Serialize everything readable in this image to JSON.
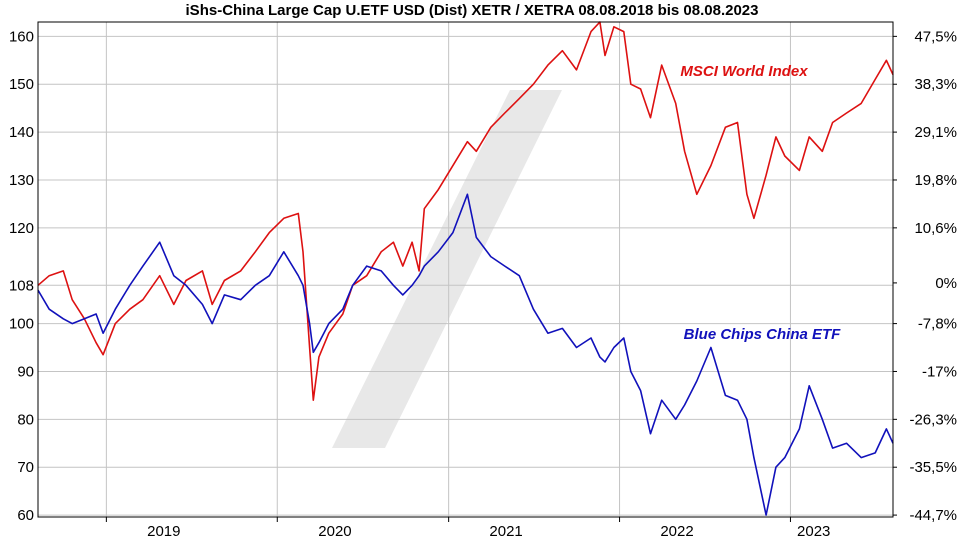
{
  "chart_data": {
    "type": "line",
    "title": "iShs-China Large Cap U.ETF USD (Dist) XETR / XETRA 08.08.2018 bis 08.08.2023",
    "xlabel": "",
    "ylabel": "",
    "x_range": [
      "2018-08-08",
      "2023-08-08"
    ],
    "ylim": [
      59.6,
      163
    ],
    "x_ticks": [
      {
        "date": "2019-01-01",
        "label": "2019"
      },
      {
        "date": "2020-01-01",
        "label": "2020"
      },
      {
        "date": "2021-01-01",
        "label": "2021"
      },
      {
        "date": "2022-01-01",
        "label": "2022"
      },
      {
        "date": "2023-01-01",
        "label": "2023"
      }
    ],
    "y_ticks_left": [
      60,
      70,
      80,
      90,
      100,
      108,
      120,
      130,
      140,
      150,
      160
    ],
    "y_ticks_right": [
      {
        "value": 160,
        "label": "47,5%"
      },
      {
        "value": 150,
        "label": "38,3%"
      },
      {
        "value": 140,
        "label": "29,1%"
      },
      {
        "value": 130,
        "label": "19,8%"
      },
      {
        "value": 120,
        "label": "10,6%"
      },
      {
        "value": 108.5,
        "label": "0%"
      },
      {
        "value": 100,
        "label": "-7,8%"
      },
      {
        "value": 90,
        "label": "-17%"
      },
      {
        "value": 80,
        "label": "-26,3%"
      },
      {
        "value": 70,
        "label": "-35,5%"
      },
      {
        "value": 60,
        "label": "-44,7%"
      }
    ],
    "grid": true,
    "series": [
      {
        "name": "MSCI World Index",
        "color": "#dd1111",
        "label_position": "upper-right",
        "points": [
          [
            "2018-08-08",
            108
          ],
          [
            "2018-09-01",
            110
          ],
          [
            "2018-10-01",
            111
          ],
          [
            "2018-10-20",
            105
          ],
          [
            "2018-11-15",
            101
          ],
          [
            "2018-12-10",
            96
          ],
          [
            "2018-12-25",
            93.5
          ],
          [
            "2019-01-20",
            100
          ],
          [
            "2019-02-20",
            103
          ],
          [
            "2019-03-20",
            105
          ],
          [
            "2019-04-25",
            110
          ],
          [
            "2019-05-25",
            104
          ],
          [
            "2019-06-20",
            109
          ],
          [
            "2019-07-25",
            111
          ],
          [
            "2019-08-15",
            104
          ],
          [
            "2019-09-10",
            109
          ],
          [
            "2019-10-15",
            111
          ],
          [
            "2019-11-15",
            115
          ],
          [
            "2019-12-15",
            119
          ],
          [
            "2020-01-15",
            122
          ],
          [
            "2020-02-15",
            123
          ],
          [
            "2020-02-25",
            115
          ],
          [
            "2020-03-10",
            95
          ],
          [
            "2020-03-18",
            84
          ],
          [
            "2020-03-30",
            93
          ],
          [
            "2020-04-20",
            98
          ],
          [
            "2020-05-20",
            102
          ],
          [
            "2020-06-10",
            108
          ],
          [
            "2020-07-10",
            110
          ],
          [
            "2020-08-10",
            115
          ],
          [
            "2020-09-05",
            117
          ],
          [
            "2020-09-25",
            112
          ],
          [
            "2020-10-15",
            117
          ],
          [
            "2020-10-30",
            111
          ],
          [
            "2020-11-10",
            124
          ],
          [
            "2020-12-10",
            128
          ],
          [
            "2021-01-10",
            133
          ],
          [
            "2021-02-10",
            138
          ],
          [
            "2021-03-01",
            136
          ],
          [
            "2021-04-01",
            141
          ],
          [
            "2021-05-01",
            144
          ],
          [
            "2021-06-01",
            147
          ],
          [
            "2021-07-01",
            150
          ],
          [
            "2021-08-01",
            154
          ],
          [
            "2021-09-01",
            157
          ],
          [
            "2021-10-01",
            153
          ],
          [
            "2021-11-01",
            161
          ],
          [
            "2021-11-20",
            163
          ],
          [
            "2021-12-01",
            156
          ],
          [
            "2021-12-20",
            162
          ],
          [
            "2022-01-10",
            161
          ],
          [
            "2022-01-25",
            150
          ],
          [
            "2022-02-15",
            149
          ],
          [
            "2022-03-08",
            143
          ],
          [
            "2022-04-01",
            154
          ],
          [
            "2022-05-01",
            146
          ],
          [
            "2022-05-20",
            136
          ],
          [
            "2022-06-15",
            127
          ],
          [
            "2022-07-15",
            133
          ],
          [
            "2022-08-15",
            141
          ],
          [
            "2022-09-10",
            142
          ],
          [
            "2022-09-30",
            127
          ],
          [
            "2022-10-15",
            122
          ],
          [
            "2022-11-10",
            131
          ],
          [
            "2022-12-01",
            139
          ],
          [
            "2022-12-20",
            135
          ],
          [
            "2023-01-20",
            132
          ],
          [
            "2023-02-10",
            139
          ],
          [
            "2023-03-10",
            136
          ],
          [
            "2023-04-01",
            142
          ],
          [
            "2023-05-01",
            144
          ],
          [
            "2023-06-01",
            146
          ],
          [
            "2023-07-01",
            151
          ],
          [
            "2023-07-25",
            155
          ],
          [
            "2023-08-08",
            152
          ]
        ]
      },
      {
        "name": "Blue Chips China ETF",
        "color": "#1111bb",
        "label_position": "middle-right",
        "points": [
          [
            "2018-08-08",
            107
          ],
          [
            "2018-09-01",
            103
          ],
          [
            "2018-10-01",
            101
          ],
          [
            "2018-10-20",
            100
          ],
          [
            "2018-11-15",
            101
          ],
          [
            "2018-12-10",
            102
          ],
          [
            "2018-12-25",
            98
          ],
          [
            "2019-01-20",
            103
          ],
          [
            "2019-02-20",
            108
          ],
          [
            "2019-03-20",
            112
          ],
          [
            "2019-04-25",
            117
          ],
          [
            "2019-05-25",
            110
          ],
          [
            "2019-06-20",
            108
          ],
          [
            "2019-07-25",
            104
          ],
          [
            "2019-08-15",
            100
          ],
          [
            "2019-09-10",
            106
          ],
          [
            "2019-10-15",
            105
          ],
          [
            "2019-11-15",
            108
          ],
          [
            "2019-12-15",
            110
          ],
          [
            "2020-01-15",
            115
          ],
          [
            "2020-02-15",
            110
          ],
          [
            "2020-02-25",
            108
          ],
          [
            "2020-03-10",
            100
          ],
          [
            "2020-03-18",
            94
          ],
          [
            "2020-03-30",
            96
          ],
          [
            "2020-04-20",
            100
          ],
          [
            "2020-05-20",
            103
          ],
          [
            "2020-06-10",
            108
          ],
          [
            "2020-07-10",
            112
          ],
          [
            "2020-08-10",
            111
          ],
          [
            "2020-09-05",
            108
          ],
          [
            "2020-09-25",
            106
          ],
          [
            "2020-10-15",
            108
          ],
          [
            "2020-10-30",
            110
          ],
          [
            "2020-11-10",
            112
          ],
          [
            "2020-12-10",
            115
          ],
          [
            "2021-01-10",
            119
          ],
          [
            "2021-02-10",
            127
          ],
          [
            "2021-03-01",
            118
          ],
          [
            "2021-04-01",
            114
          ],
          [
            "2021-05-01",
            112
          ],
          [
            "2021-06-01",
            110
          ],
          [
            "2021-07-01",
            103
          ],
          [
            "2021-08-01",
            98
          ],
          [
            "2021-09-01",
            99
          ],
          [
            "2021-10-01",
            95
          ],
          [
            "2021-11-01",
            97
          ],
          [
            "2021-11-20",
            93
          ],
          [
            "2021-12-01",
            92
          ],
          [
            "2021-12-20",
            95
          ],
          [
            "2022-01-10",
            97
          ],
          [
            "2022-01-25",
            90
          ],
          [
            "2022-02-15",
            86
          ],
          [
            "2022-03-08",
            77
          ],
          [
            "2022-04-01",
            84
          ],
          [
            "2022-05-01",
            80
          ],
          [
            "2022-05-20",
            83
          ],
          [
            "2022-06-15",
            88
          ],
          [
            "2022-07-15",
            95
          ],
          [
            "2022-08-15",
            85
          ],
          [
            "2022-09-10",
            84
          ],
          [
            "2022-09-30",
            80
          ],
          [
            "2022-10-15",
            72
          ],
          [
            "2022-11-10",
            60
          ],
          [
            "2022-12-01",
            70
          ],
          [
            "2022-12-20",
            72
          ],
          [
            "2023-01-20",
            78
          ],
          [
            "2023-02-10",
            87
          ],
          [
            "2023-03-10",
            80
          ],
          [
            "2023-04-01",
            74
          ],
          [
            "2023-05-01",
            75
          ],
          [
            "2023-06-01",
            72
          ],
          [
            "2023-07-01",
            73
          ],
          [
            "2023-07-25",
            78
          ],
          [
            "2023-08-08",
            75
          ]
        ]
      }
    ]
  }
}
